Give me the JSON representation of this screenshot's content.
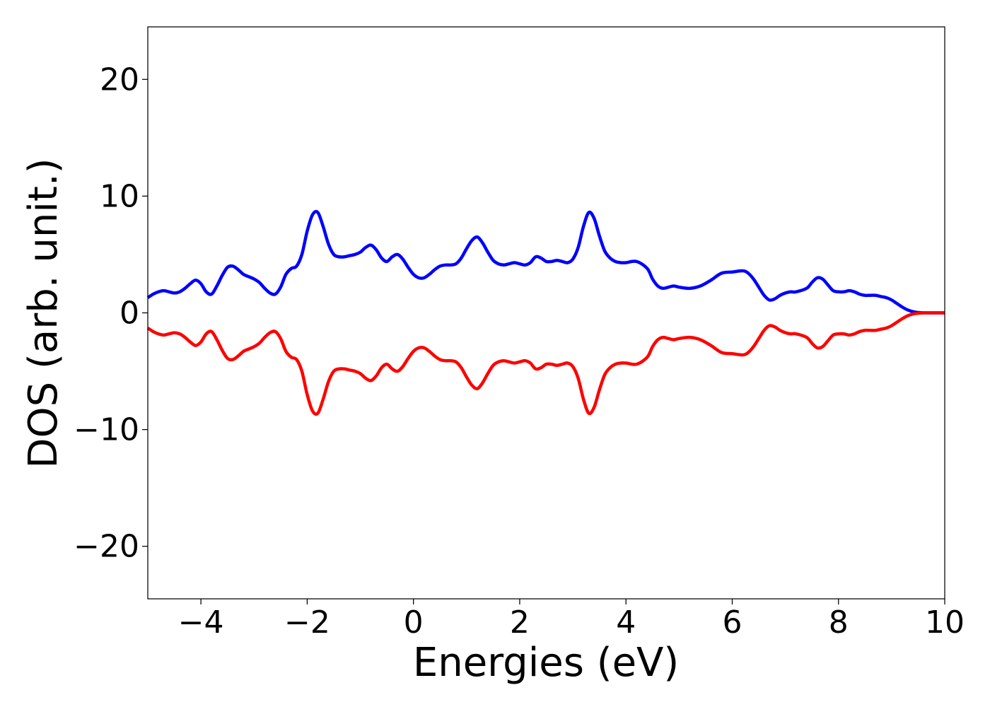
{
  "chart_data": {
    "type": "line",
    "title": "",
    "xlabel": "Energies (eV)",
    "ylabel": "DOS (arb. unit.)",
    "xlim": [
      -5,
      10
    ],
    "ylim": [
      -24.5,
      24.5
    ],
    "xticks": [
      -4,
      -2,
      0,
      2,
      4,
      6,
      8,
      10
    ],
    "xtick_labels": [
      "−4",
      "−2",
      "0",
      "2",
      "4",
      "6",
      "8",
      "10"
    ],
    "yticks": [
      -20,
      -10,
      0,
      10,
      20
    ],
    "ytick_labels": [
      "−20",
      "−10",
      "0",
      "10",
      "20"
    ],
    "grid": false,
    "legend": "none",
    "series": [
      {
        "color": "#0000ff",
        "x": [
          -5.0,
          -4.9,
          -4.8,
          -4.7,
          -4.6,
          -4.5,
          -4.4,
          -4.3,
          -4.2,
          -4.1,
          -4.0,
          -3.9,
          -3.8,
          -3.7,
          -3.6,
          -3.5,
          -3.4,
          -3.3,
          -3.2,
          -3.1,
          -3.0,
          -2.9,
          -2.8,
          -2.7,
          -2.6,
          -2.5,
          -2.4,
          -2.3,
          -2.2,
          -2.1,
          -2.0,
          -1.9,
          -1.8,
          -1.7,
          -1.6,
          -1.5,
          -1.4,
          -1.3,
          -1.2,
          -1.1,
          -1.0,
          -0.9,
          -0.8,
          -0.7,
          -0.6,
          -0.5,
          -0.4,
          -0.3,
          -0.2,
          -0.1,
          0.0,
          0.1,
          0.2,
          0.3,
          0.4,
          0.5,
          0.6,
          0.7,
          0.8,
          0.9,
          1.0,
          1.1,
          1.2,
          1.3,
          1.4,
          1.5,
          1.6,
          1.7,
          1.8,
          1.9,
          2.0,
          2.1,
          2.2,
          2.3,
          2.4,
          2.5,
          2.6,
          2.7,
          2.8,
          2.9,
          3.0,
          3.1,
          3.2,
          3.3,
          3.4,
          3.5,
          3.6,
          3.7,
          3.8,
          3.9,
          4.0,
          4.2,
          4.4,
          4.5,
          4.6,
          4.7,
          4.8,
          4.9,
          5.0,
          5.2,
          5.4,
          5.6,
          5.8,
          6.0,
          6.2,
          6.3,
          6.4,
          6.5,
          6.6,
          6.7,
          6.8,
          6.9,
          7.0,
          7.1,
          7.2,
          7.4,
          7.5,
          7.6,
          7.7,
          7.8,
          7.9,
          8.0,
          8.1,
          8.2,
          8.3,
          8.4,
          8.5,
          8.6,
          8.7,
          8.8,
          8.9,
          9.0,
          9.1,
          9.2,
          9.3,
          9.4,
          9.5,
          9.6,
          9.7,
          9.8,
          10.0
        ],
        "y": [
          1.3,
          1.6,
          1.8,
          1.9,
          1.8,
          1.7,
          1.8,
          2.1,
          2.5,
          2.8,
          2.5,
          1.8,
          1.6,
          2.3,
          3.2,
          3.9,
          4.0,
          3.7,
          3.3,
          3.1,
          2.9,
          2.6,
          2.1,
          1.7,
          1.6,
          2.2,
          3.3,
          3.8,
          4.0,
          5.0,
          7.0,
          8.4,
          8.6,
          7.4,
          5.9,
          5.0,
          4.8,
          4.8,
          4.9,
          5.0,
          5.2,
          5.6,
          5.8,
          5.4,
          4.7,
          4.4,
          4.8,
          5.0,
          4.6,
          3.9,
          3.3,
          3.0,
          3.0,
          3.3,
          3.7,
          4.0,
          4.1,
          4.1,
          4.2,
          4.7,
          5.5,
          6.2,
          6.5,
          6.0,
          5.2,
          4.5,
          4.2,
          4.1,
          4.2,
          4.3,
          4.2,
          4.1,
          4.3,
          4.8,
          4.7,
          4.4,
          4.4,
          4.5,
          4.4,
          4.3,
          4.6,
          5.6,
          7.4,
          8.6,
          8.1,
          6.6,
          5.3,
          4.7,
          4.4,
          4.3,
          4.3,
          4.4,
          3.8,
          2.9,
          2.3,
          2.1,
          2.2,
          2.3,
          2.2,
          2.1,
          2.3,
          2.8,
          3.4,
          3.5,
          3.6,
          3.4,
          2.9,
          2.2,
          1.5,
          1.1,
          1.2,
          1.5,
          1.7,
          1.8,
          1.8,
          2.1,
          2.6,
          3.0,
          2.9,
          2.4,
          1.9,
          1.8,
          1.8,
          1.9,
          1.8,
          1.6,
          1.5,
          1.5,
          1.5,
          1.4,
          1.3,
          1.1,
          0.8,
          0.5,
          0.25,
          0.1,
          0.03,
          0.0,
          0.0,
          0.0,
          0.0
        ]
      },
      {
        "color": "#ff0000",
        "mirror_of_series": 0
      }
    ]
  }
}
